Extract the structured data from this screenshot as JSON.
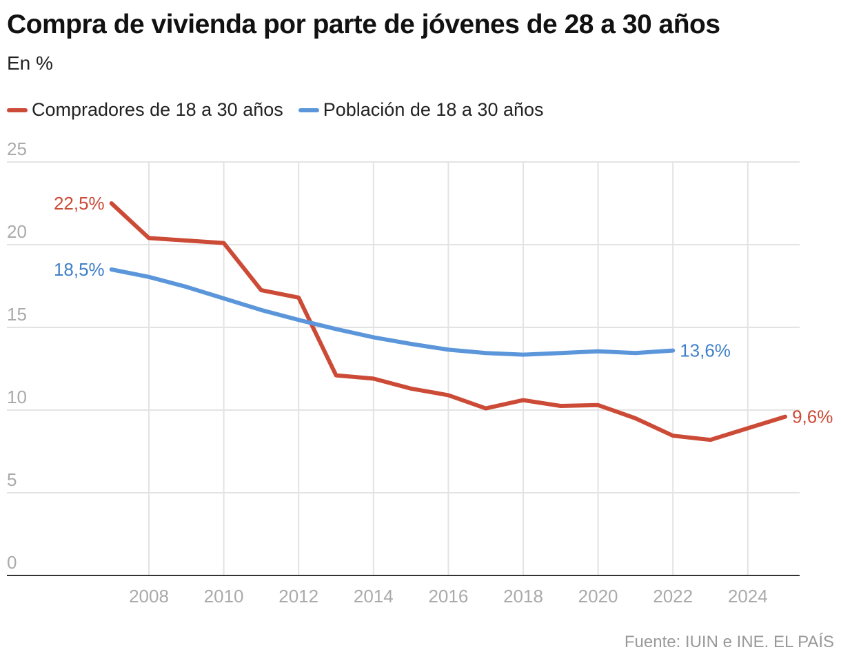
{
  "chart_data": {
    "type": "line",
    "title": "Compra de vivienda por parte de jóvenes de 28 a 30 años",
    "subtitle": "En %",
    "source": "Fuente: IUIN e INE. EL PAÍS",
    "xlabel": "",
    "ylabel": "",
    "ylim": [
      0,
      25
    ],
    "xlim": [
      2006,
      2025.5
    ],
    "yticks": [
      "0",
      "5",
      "10",
      "15",
      "20",
      "25"
    ],
    "xticks": [
      "2008",
      "2010",
      "2012",
      "2014",
      "2016",
      "2018",
      "2020",
      "2022",
      "2024"
    ],
    "grid": true,
    "legend_position": "top-left",
    "series": [
      {
        "name": "Compradores de 18 a 30 años",
        "color": "#cc4b37",
        "x": [
          2007,
          2008,
          2009,
          2010,
          2011,
          2012,
          2013,
          2014,
          2015,
          2016,
          2017,
          2018,
          2019,
          2020,
          2021,
          2022,
          2023,
          2024,
          2025
        ],
        "values": [
          22.5,
          20.4,
          20.25,
          20.1,
          17.25,
          16.8,
          12.1,
          11.9,
          11.3,
          10.9,
          10.1,
          10.6,
          10.25,
          10.3,
          9.5,
          8.45,
          8.2,
          8.9,
          9.6
        ],
        "start_label": "22,5%",
        "end_label": "9,6%"
      },
      {
        "name": "Población de 18 a 30 años",
        "color": "#5b96db",
        "x": [
          2007,
          2008,
          2009,
          2010,
          2011,
          2012,
          2013,
          2014,
          2015,
          2016,
          2017,
          2018,
          2019,
          2020,
          2021,
          2022
        ],
        "values": [
          18.5,
          18.05,
          17.45,
          16.75,
          16.05,
          15.45,
          14.9,
          14.4,
          14.0,
          13.65,
          13.45,
          13.35,
          13.45,
          13.55,
          13.45,
          13.6
        ],
        "start_label": "18,5%",
        "end_label": "13,6%"
      }
    ]
  }
}
